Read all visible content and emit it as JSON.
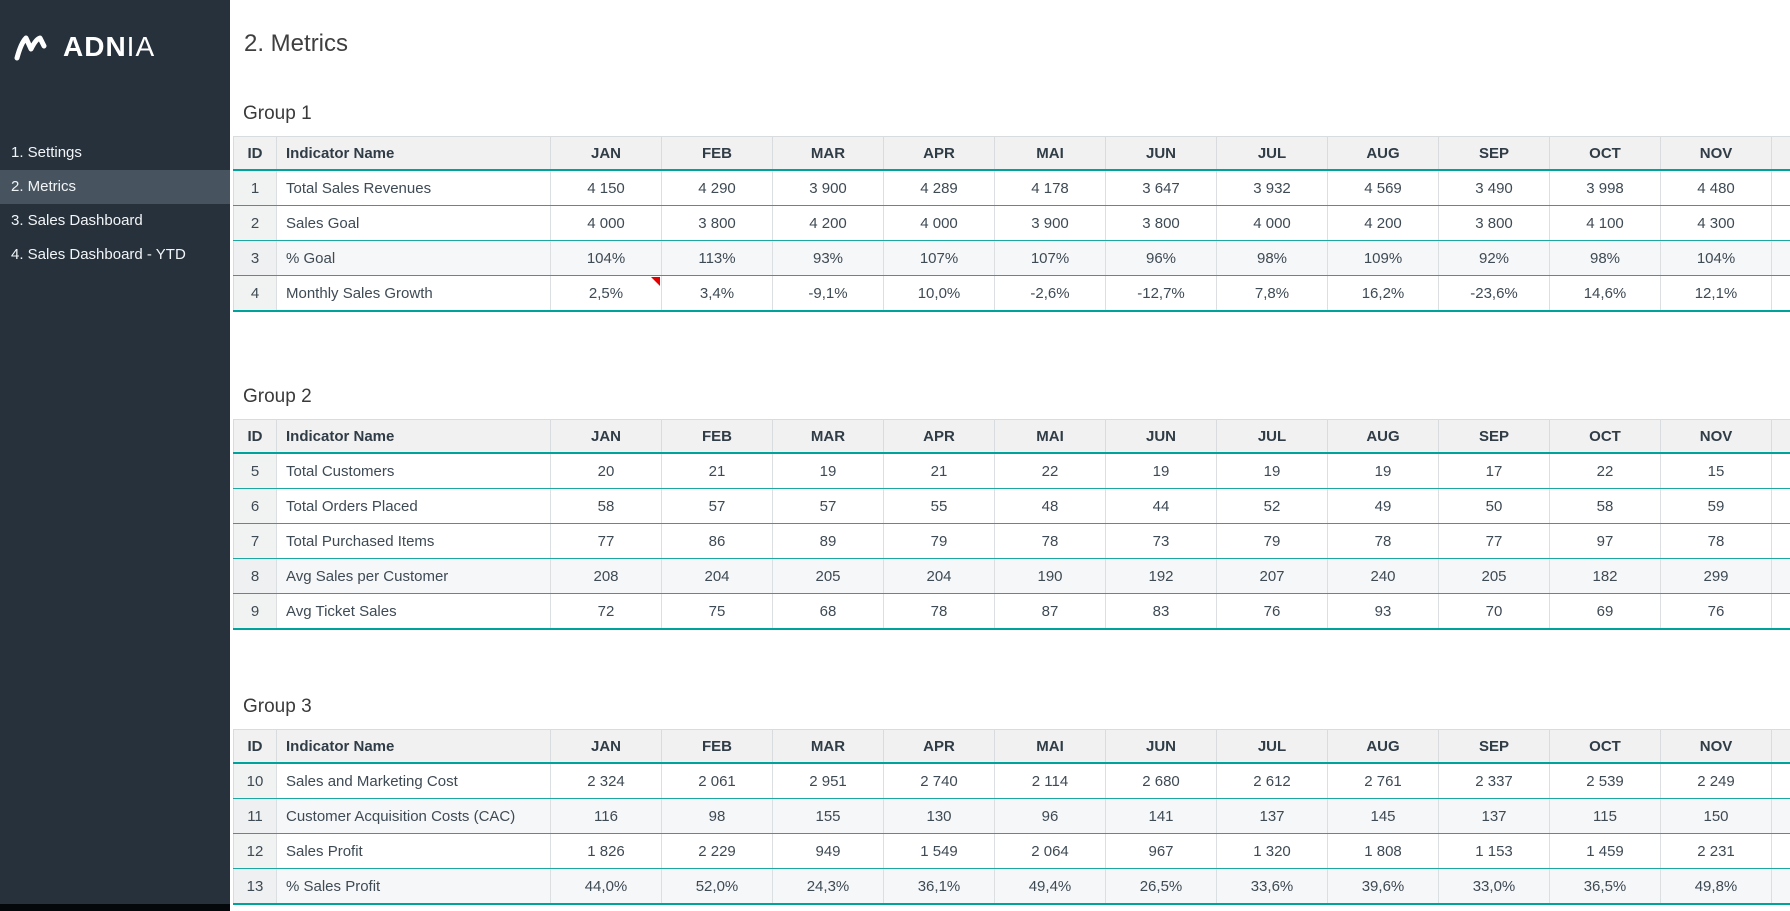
{
  "sidebar": {
    "logo_primary": "ADN",
    "logo_secondary": "IA",
    "items": [
      {
        "label": "1. Settings",
        "active": false
      },
      {
        "label": "2. Metrics",
        "active": true
      },
      {
        "label": "3. Sales Dashboard",
        "active": false
      },
      {
        "label": "4. Sales Dashboard - YTD",
        "active": false
      }
    ]
  },
  "page": {
    "title": "2. Metrics"
  },
  "table": {
    "id_header": "ID",
    "name_header": "Indicator Name",
    "months": [
      "JAN",
      "FEB",
      "MAR",
      "APR",
      "MAI",
      "JUN",
      "JUL",
      "AUG",
      "SEP",
      "OCT",
      "NOV"
    ]
  },
  "colors": {
    "accent_teal": "#00a29c",
    "sidebar_bg": "#26313c",
    "sidebar_active_bg": "#47545f",
    "header_bg": "#f1f1f1",
    "comment_flag_red": "#e40000"
  },
  "groups": [
    {
      "title": "Group 1",
      "rows": [
        {
          "id": "1",
          "name": "Total Sales Revenues",
          "shaded": false,
          "values": [
            "4 150",
            "4 290",
            "3 900",
            "4 289",
            "4 178",
            "3 647",
            "3 932",
            "4 569",
            "3 490",
            "3 998",
            "4 480"
          ]
        },
        {
          "id": "2",
          "name": "Sales Goal",
          "shaded": false,
          "values": [
            "4 000",
            "3 800",
            "4 200",
            "4 000",
            "3 900",
            "3 800",
            "4 000",
            "4 200",
            "3 800",
            "4 100",
            "4 300"
          ]
        },
        {
          "id": "3",
          "name": "% Goal",
          "shaded": true,
          "values": [
            "104%",
            "113%",
            "93%",
            "107%",
            "107%",
            "96%",
            "98%",
            "109%",
            "92%",
            "98%",
            "104%"
          ]
        },
        {
          "id": "4",
          "name": "Monthly Sales Growth",
          "shaded": false,
          "comment_month_index": 0,
          "values": [
            "2,5%",
            "3,4%",
            "-9,1%",
            "10,0%",
            "-2,6%",
            "-12,7%",
            "7,8%",
            "16,2%",
            "-23,6%",
            "14,6%",
            "12,1%"
          ]
        }
      ]
    },
    {
      "title": "Group 2",
      "rows": [
        {
          "id": "5",
          "name": "Total Customers",
          "shaded": false,
          "values": [
            "20",
            "21",
            "19",
            "21",
            "22",
            "19",
            "19",
            "19",
            "17",
            "22",
            "15"
          ]
        },
        {
          "id": "6",
          "name": "Total Orders Placed",
          "shaded": false,
          "values": [
            "58",
            "57",
            "57",
            "55",
            "48",
            "44",
            "52",
            "49",
            "50",
            "58",
            "59"
          ]
        },
        {
          "id": "7",
          "name": "Total Purchased Items",
          "shaded": false,
          "values": [
            "77",
            "86",
            "89",
            "79",
            "78",
            "73",
            "79",
            "78",
            "77",
            "97",
            "78"
          ]
        },
        {
          "id": "8",
          "name": "Avg Sales per Customer",
          "shaded": true,
          "values": [
            "208",
            "204",
            "205",
            "204",
            "190",
            "192",
            "207",
            "240",
            "205",
            "182",
            "299"
          ]
        },
        {
          "id": "9",
          "name": "Avg Ticket Sales",
          "shaded": false,
          "values": [
            "72",
            "75",
            "68",
            "78",
            "87",
            "83",
            "76",
            "93",
            "70",
            "69",
            "76"
          ]
        }
      ]
    },
    {
      "title": "Group 3",
      "rows": [
        {
          "id": "10",
          "name": "Sales and Marketing Cost",
          "shaded": false,
          "values": [
            "2 324",
            "2 061",
            "2 951",
            "2 740",
            "2 114",
            "2 680",
            "2 612",
            "2 761",
            "2 337",
            "2 539",
            "2 249"
          ]
        },
        {
          "id": "11",
          "name": "Customer Acquisition Costs (CAC)",
          "shaded": true,
          "values": [
            "116",
            "98",
            "155",
            "130",
            "96",
            "141",
            "137",
            "145",
            "137",
            "115",
            "150"
          ]
        },
        {
          "id": "12",
          "name": "Sales Profit",
          "shaded": false,
          "values": [
            "1 826",
            "2 229",
            "949",
            "1 549",
            "2 064",
            "967",
            "1 320",
            "1 808",
            "1 153",
            "1 459",
            "2 231"
          ]
        },
        {
          "id": "13",
          "name": "% Sales Profit",
          "shaded": true,
          "values": [
            "44,0%",
            "52,0%",
            "24,3%",
            "36,1%",
            "49,4%",
            "26,5%",
            "33,6%",
            "39,6%",
            "33,0%",
            "36,5%",
            "49,8%"
          ]
        }
      ]
    }
  ]
}
